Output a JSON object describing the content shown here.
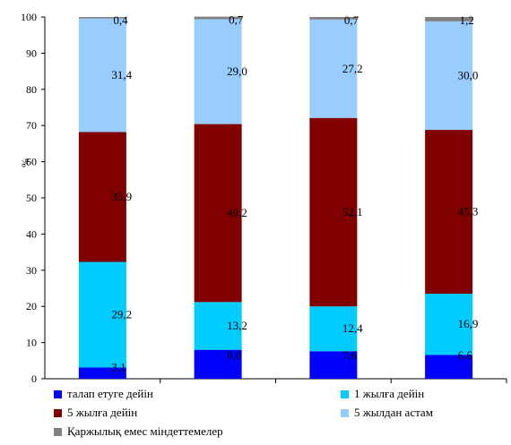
{
  "chart_data": {
    "type": "bar",
    "stacked": true,
    "categories": [
      "",
      "",
      "",
      ""
    ],
    "ylabel": "%",
    "ylim": [
      0,
      100
    ],
    "yticks": [
      0,
      10,
      20,
      30,
      40,
      50,
      60,
      70,
      80,
      90,
      100
    ],
    "grid": false,
    "legend_position": "bottom",
    "series": [
      {
        "name": "талап етуге дейін",
        "color": "#0000ff",
        "values": [
          3.1,
          8.0,
          7.6,
          6.6
        ],
        "labels": [
          "3,1",
          "8,0",
          "7,6",
          "6,6"
        ]
      },
      {
        "name": "1 жылға дейін",
        "color": "#00ccff",
        "values": [
          29.2,
          13.2,
          12.4,
          16.9
        ],
        "labels": [
          "29,2",
          "13,2",
          "12,4",
          "16,9"
        ]
      },
      {
        "name": "5 жылға дейін",
        "color": "#800000",
        "values": [
          35.9,
          49.2,
          52.1,
          45.3
        ],
        "labels": [
          "35,9",
          "49,2",
          "52,1",
          "45,3"
        ]
      },
      {
        "name": "5 жылдан астам",
        "color": "#99ccff",
        "values": [
          31.4,
          29.0,
          27.2,
          30.0
        ],
        "labels": [
          "31,4",
          "29,0",
          "27,2",
          "30,0"
        ]
      },
      {
        "name": "Қаржылық емес міндеттемелер",
        "color": "#808080",
        "values": [
          0.4,
          0.7,
          0.7,
          1.2
        ],
        "labels": [
          "0,4",
          "0,7",
          "0,7",
          "1,2"
        ]
      }
    ]
  }
}
